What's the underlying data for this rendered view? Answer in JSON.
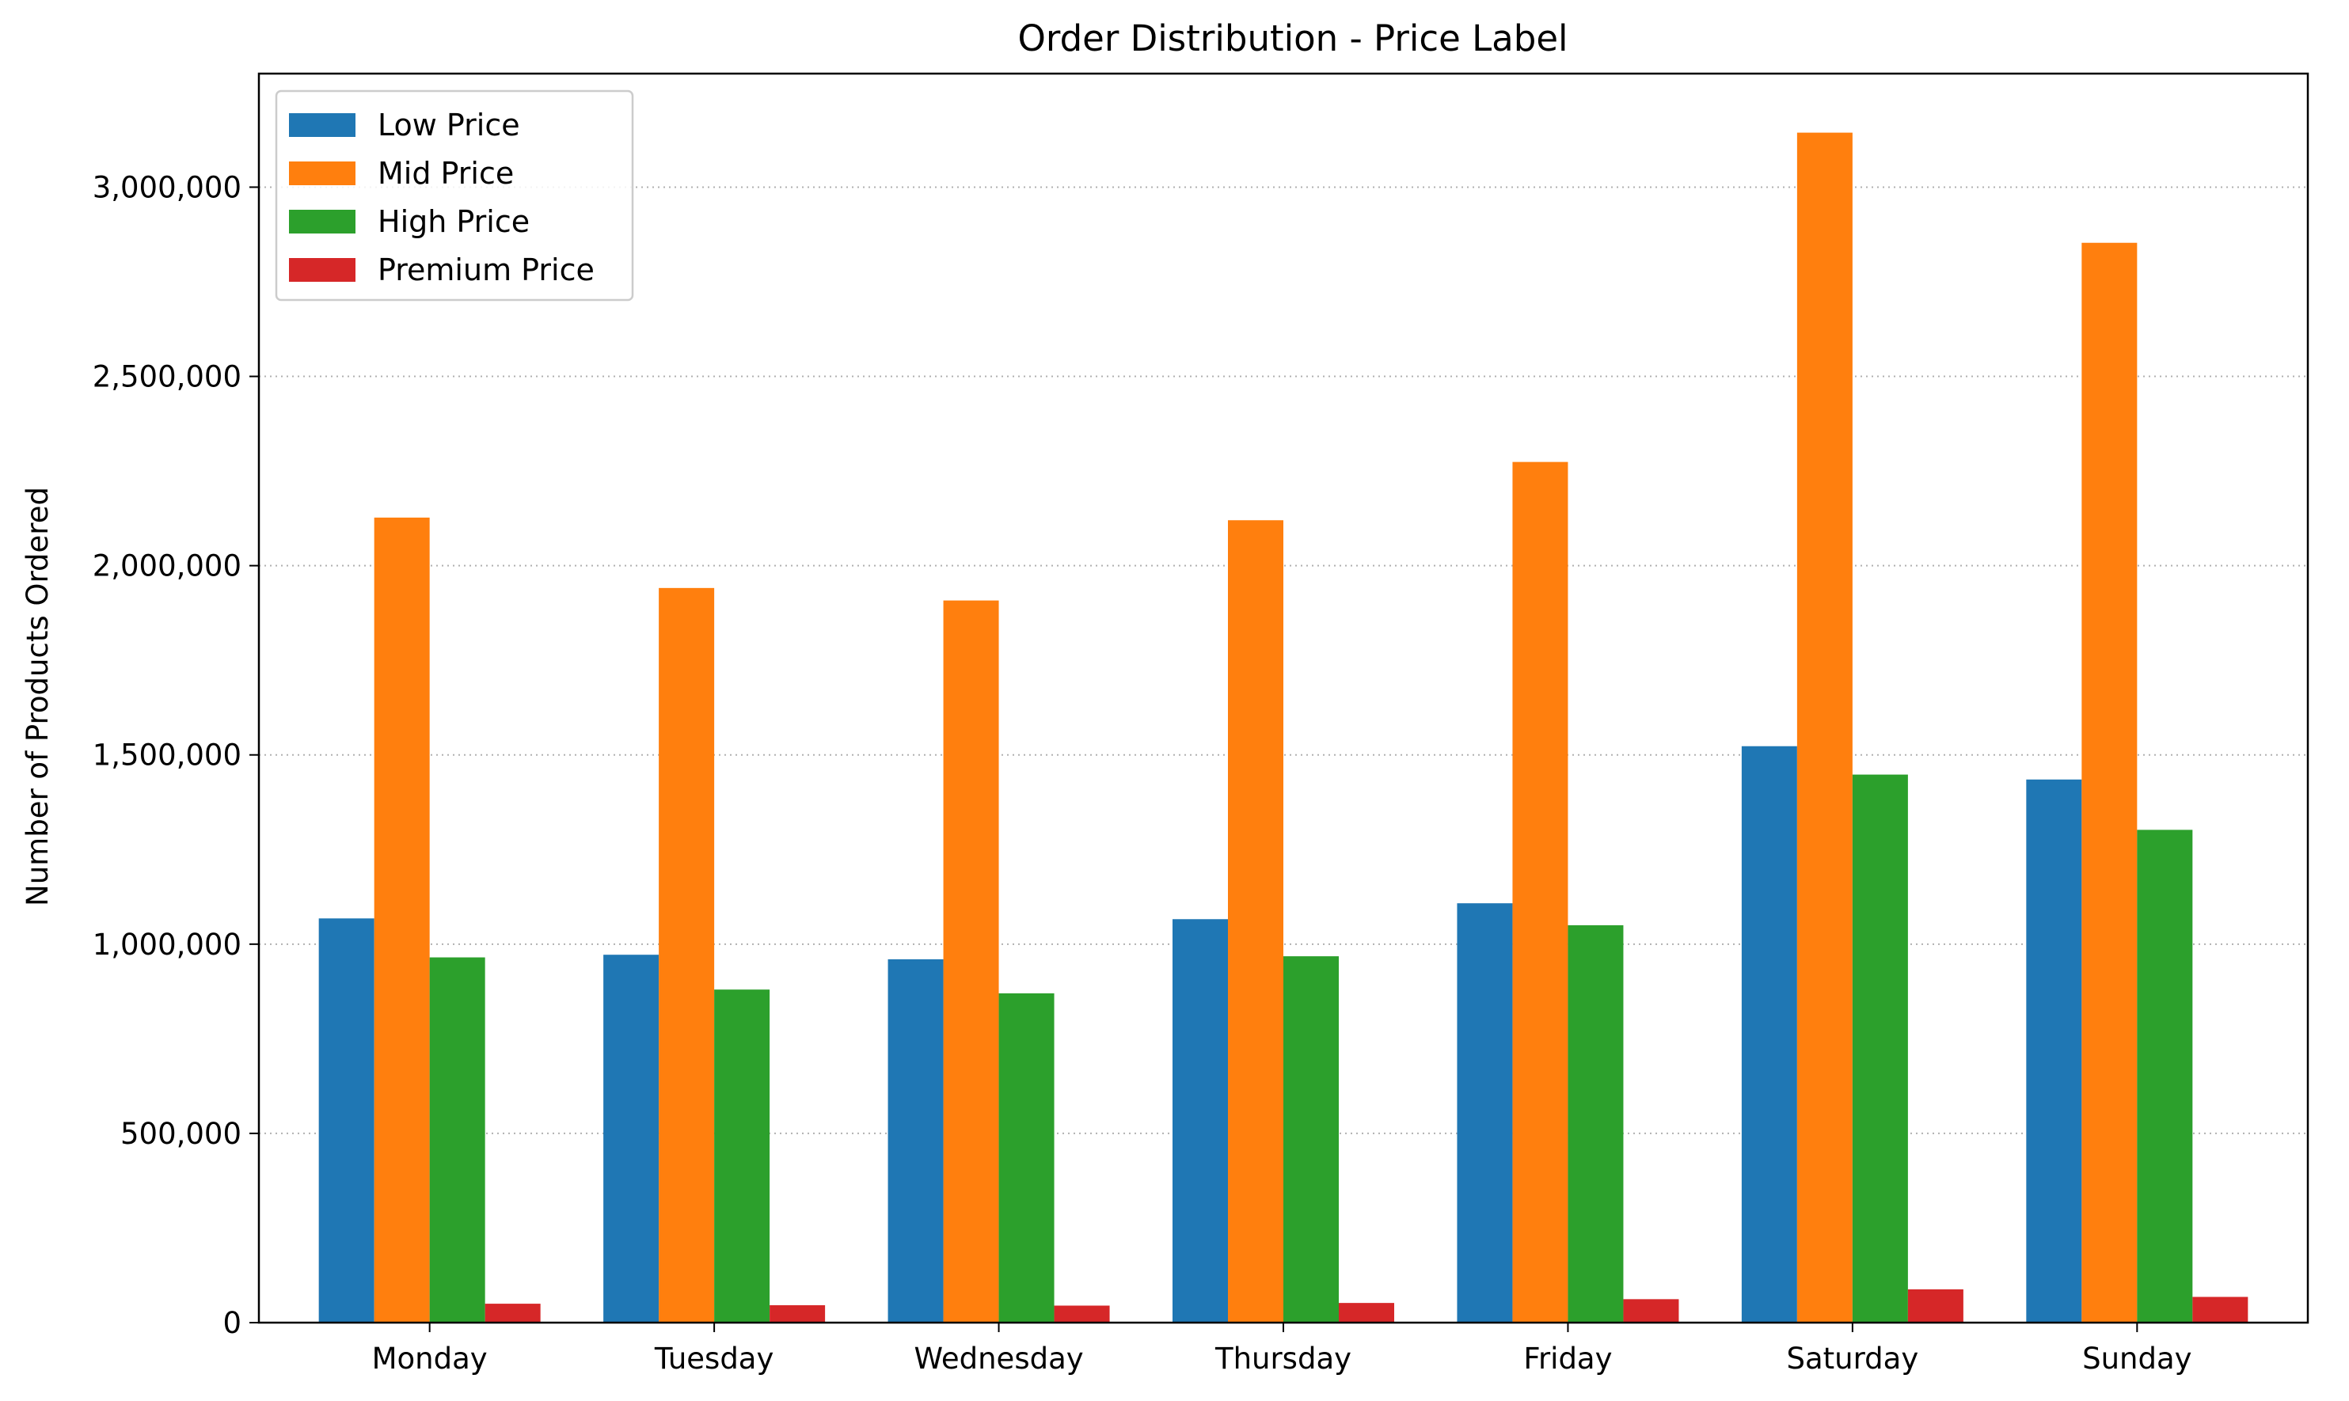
{
  "chart_data": {
    "type": "bar",
    "title": "Order Distribution - Price Label",
    "xlabel": "",
    "ylabel": "Number of Products Ordered",
    "categories": [
      "Monday",
      "Tuesday",
      "Wednesday",
      "Thursday",
      "Friday",
      "Saturday",
      "Sunday"
    ],
    "series": [
      {
        "name": "Low Price",
        "color": "#1f77b4",
        "values": [
          1068000,
          972000,
          960000,
          1066000,
          1108000,
          1523000,
          1435000
        ]
      },
      {
        "name": "Mid Price",
        "color": "#ff7f0e",
        "values": [
          2127000,
          1941000,
          1908000,
          2120000,
          2274000,
          3144000,
          2853000
        ]
      },
      {
        "name": "High Price",
        "color": "#2ca02c",
        "values": [
          965000,
          880000,
          870000,
          968000,
          1050000,
          1448000,
          1302000
        ]
      },
      {
        "name": "Premium Price",
        "color": "#d62728",
        "values": [
          50000,
          46000,
          45000,
          52000,
          62000,
          88000,
          68000
        ]
      }
    ],
    "ylim": [
      0,
      3300000
    ],
    "yticks": [
      0,
      500000,
      1000000,
      1500000,
      2000000,
      2500000,
      3000000
    ],
    "ytick_labels": [
      "0",
      "500,000",
      "1,000,000",
      "1,500,000",
      "2,000,000",
      "2,500,000",
      "3,000,000"
    ],
    "grid": {
      "y": true,
      "x": false,
      "style": "dotted"
    },
    "legend_position": "top-left"
  }
}
